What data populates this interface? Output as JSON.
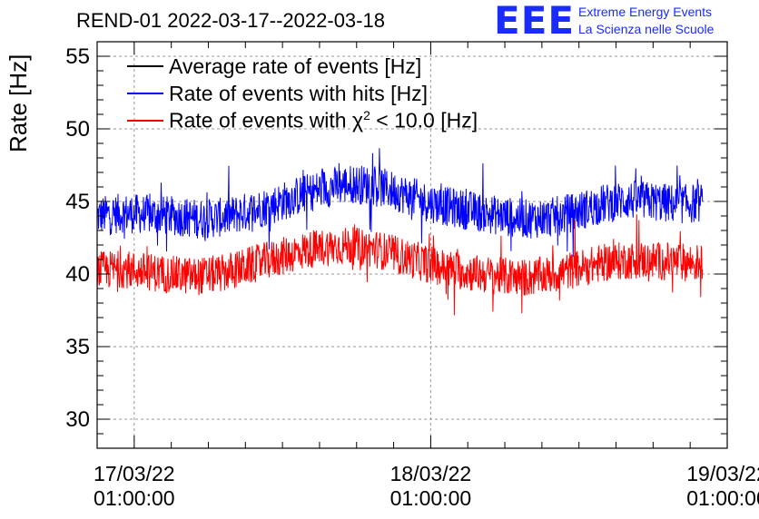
{
  "title": "REND-01 2022-03-17--2022-03-18",
  "logo": {
    "mark": "EEE",
    "line1": "Extreme Energy Events",
    "line2": "La Scienza nelle Scuole",
    "color": "#1a2bff"
  },
  "chart_data": {
    "type": "line",
    "title": "REND-01 2022-03-17--2022-03-18",
    "xlabel": "",
    "ylabel": "Rate [Hz]",
    "ylim": [
      28,
      56
    ],
    "yticks": [
      30,
      35,
      40,
      45,
      50,
      55
    ],
    "xticks": [
      {
        "date": "17/03/22",
        "time": "01:00:00"
      },
      {
        "date": "18/03/22",
        "time": "01:00:00"
      },
      {
        "date": "19/03/22",
        "time": "01:00:00"
      }
    ],
    "xlim": [
      "2022-03-16 22:00",
      "2022-03-19 01:00"
    ],
    "grid": true,
    "legend_position": "top-left",
    "series": [
      {
        "name": "Average rate of events [Hz]",
        "color": "#000000",
        "x_start": "2022-03-16 22:00",
        "x_end": "2022-03-18 23:00",
        "values": []
      },
      {
        "name": "Rate of events with hits [Hz]",
        "color": "#0000ff",
        "x_start": "2022-03-16 22:00",
        "x_end": "2022-03-18 23:00",
        "values": [
          44.0,
          44.2,
          44.1,
          44.0,
          43.8,
          43.9,
          44.3,
          44.8,
          45.4,
          45.9,
          46.2,
          46.1,
          45.6,
          45.0,
          44.6,
          44.3,
          44.0,
          43.8,
          43.9,
          44.3,
          44.8,
          45.1,
          45.0,
          44.8,
          44.9
        ],
        "noise_range": [
          -2.5,
          2.5
        ]
      },
      {
        "name_parts": [
          "Rate of events with ",
          "χ",
          "2",
          " < 10.0 [Hz]"
        ],
        "color": "#ff0000",
        "x_start": "2022-03-16 22:00",
        "x_end": "2022-03-18 23:00",
        "values": [
          40.3,
          40.4,
          40.2,
          40.0,
          39.9,
          40.1,
          40.6,
          41.1,
          41.6,
          41.9,
          42.0,
          41.8,
          41.3,
          40.8,
          40.4,
          40.1,
          39.9,
          39.8,
          40.0,
          40.4,
          40.8,
          41.0,
          41.0,
          40.9,
          40.8
        ],
        "noise_range": [
          -2.5,
          2.3
        ]
      }
    ]
  }
}
